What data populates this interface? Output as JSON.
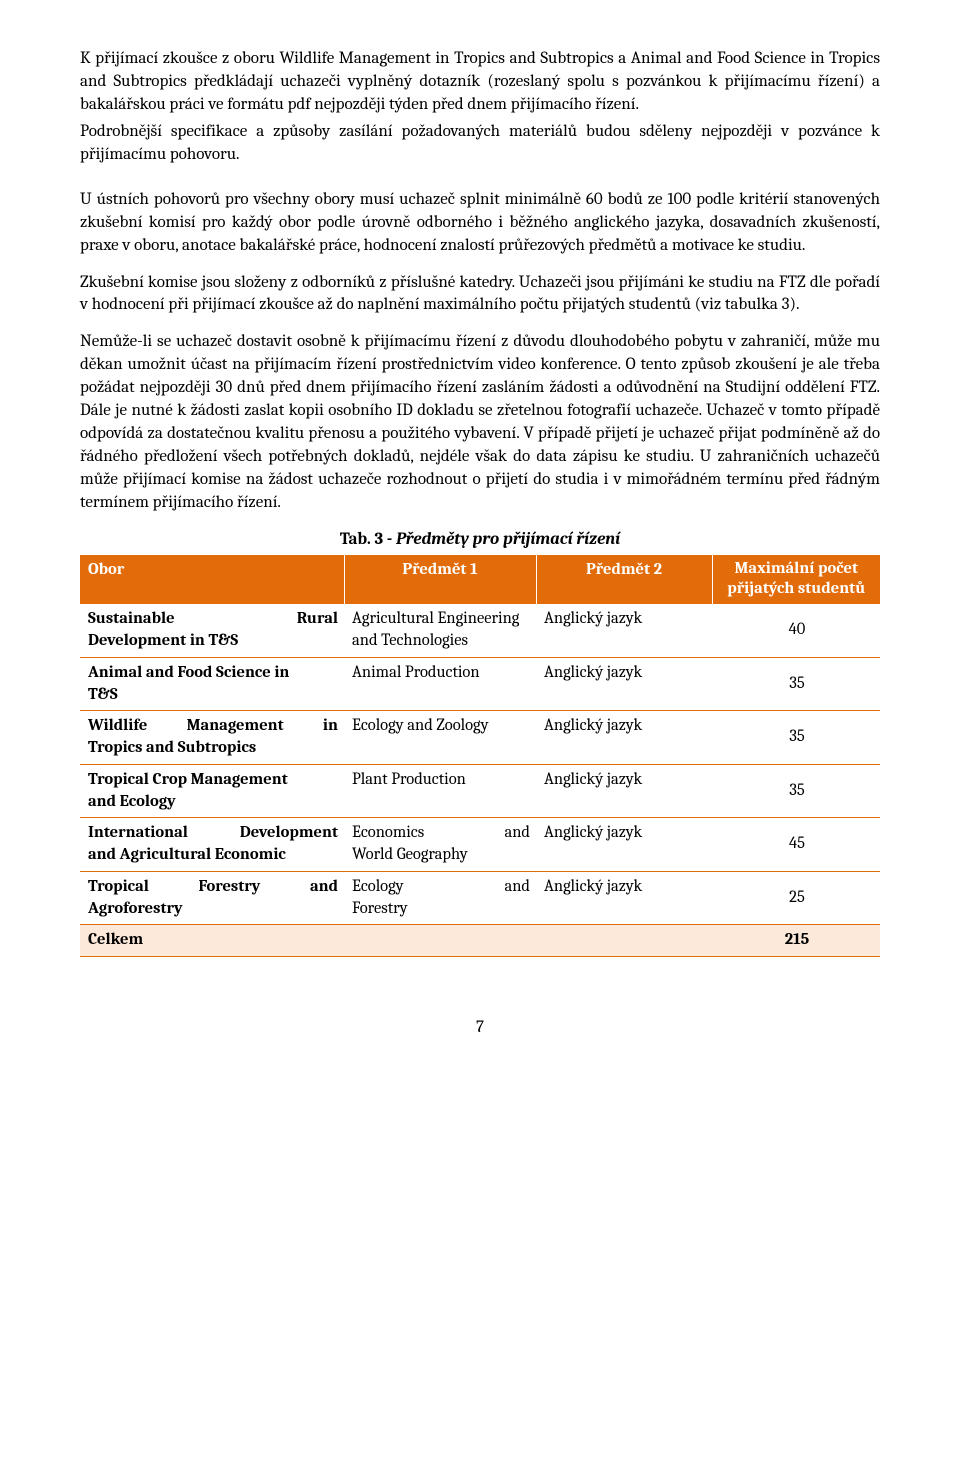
{
  "paragraphs": {
    "p1": "K přijímací zkoušce z oboru Wildlife Management in Tropics and Subtropics a Animal and Food Science in Tropics and Subtropics předkládají uchazeči vyplněný dotazník (rozeslaný spolu s pozvánkou k přijímacímu řízení) a bakalářskou práci ve formátu pdf nejpozději týden před dnem přijímacího řízení.",
    "p2": "Podrobnější specifikace a způsoby zasílání požadovaných materiálů budou sděleny nejpozději v pozvánce k přijímacímu pohovoru.",
    "p3": "U ústních pohovorů pro všechny obory musí uchazeč splnit minimálně 60 bodů ze 100 podle kritérií stanovených zkušební komisí pro každý obor podle úrovně odborného i běžného anglického jazyka, dosavadních zkušeností, praxe v oboru, anotace bakalářské práce, hodnocení znalostí průřezových předmětů a motivace ke studiu.",
    "p4": "Zkušební komise jsou složeny z odborníků z příslušné katedry. Uchazeči jsou přijímáni ke studiu na FTZ dle pořadí v hodnocení při přijímací zkoušce až do naplnění maximálního počtu přijatých studentů (viz tabulka 3).",
    "p5": "Nemůže-li se uchazeč dostavit osobně k přijímacímu řízení z důvodu dlouhodobého pobytu v zahraničí, může mu děkan umožnit účast na přijímacím řízení prostřednictvím video konference. O tento způsob zkoušení je ale třeba požádat nejpozději 30 dnů před dnem přijímacího řízení zasláním žádosti a odůvodnění na Studijní oddělení FTZ. Dále je nutné k žádosti zaslat kopii osobního ID dokladu se zřetelnou fotografií uchazeče. Uchazeč v tomto případě odpovídá za dostatečnou kvalitu přenosu a použitého vybavení. V případě přijetí je uchazeč přijat podmíněně až do řádného předložení všech potřebných dokladů, nejdéle však do data zápisu ke studiu. U zahraničních uchazečů může přijímací komise na žádost uchazeče rozhodnout o přijetí do studia i v mimořádném termínu před řádným termínem přijímacího řízení."
  },
  "table": {
    "caption_prefix": "Tab. 3 - ",
    "caption_italic": "Předměty pro přijímací řízení",
    "headers": {
      "obor": "Obor",
      "p1": "Předmět 1",
      "p2": "Předmět 2",
      "max": "Maximální počet přijatých studentů"
    },
    "rows": [
      {
        "obor_left": "Sustainable",
        "obor_right": "Rural",
        "obor_line2": "Development in T&S",
        "p1": "Agricultural Engineering and Technologies",
        "p2": "Anglický jazyk",
        "max": "40"
      },
      {
        "obor_left": "Animal and Food Science in",
        "obor_right": "",
        "obor_line2": "T&S",
        "p1": "Animal Production",
        "p2": "Anglický jazyk",
        "max": "35"
      },
      {
        "obor_left": "Wildlife",
        "obor_mid": "Management",
        "obor_right": "in",
        "obor_line2": "Tropics and Subtropics",
        "p1": "Ecology and Zoology",
        "p2": "Anglický jazyk",
        "max": "35"
      },
      {
        "obor_left": "Tropical Crop Management",
        "obor_right": "",
        "obor_line2": "and Ecology",
        "p1": "Plant Production",
        "p2": "Anglický jazyk",
        "max": "35"
      },
      {
        "obor_left": "International",
        "obor_right": "Development",
        "obor_line2": "and Agricultural Economic",
        "p1_left": "Economics",
        "p1_right": "and",
        "p1_line2": "World Geography",
        "p2": "Anglický jazyk",
        "max": "45"
      },
      {
        "obor_left": "Tropical",
        "obor_mid": "Forestry",
        "obor_right": "and",
        "obor_line2": "Agroforestry",
        "p1_left": "Ecology",
        "p1_right": "and",
        "p1_line2": "Forestry",
        "p2": "Anglický jazyk",
        "max": "25"
      }
    ],
    "total": {
      "label": "Celkem",
      "value": "215"
    }
  },
  "page_number": "7",
  "colors": {
    "header_bg": "#e36c0a",
    "header_text": "#ffffff",
    "total_bg": "#fde9d9",
    "border": "#e36c0a",
    "body_text": "#000000",
    "page_bg": "#ffffff"
  }
}
